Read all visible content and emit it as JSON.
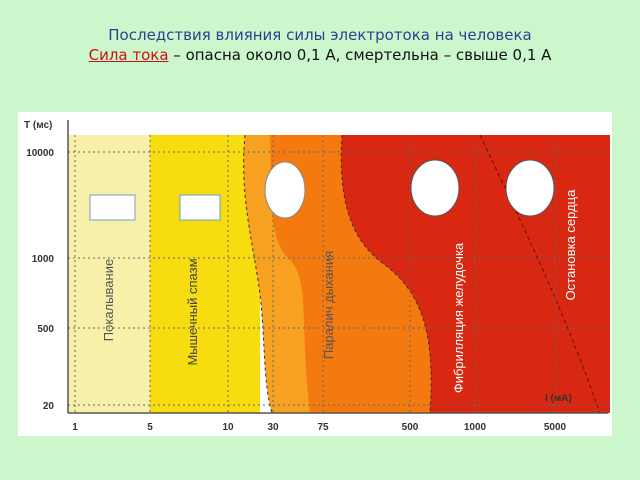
{
  "header": {
    "title": "Последствия влияния силы электротока на человека",
    "subtitle_highlight": "Сила тока",
    "subtitle_rest": " – опасна около 0,1 А, смертельна – свыше 0,1 А"
  },
  "diagram": {
    "y_axis_label": "T (мс)",
    "x_axis_label": "I (мА)",
    "y_ticks": [
      "10000",
      "1000",
      "500",
      "20"
    ],
    "x_ticks": [
      "1",
      "5",
      "10",
      "30",
      "75",
      "500",
      "1000",
      "5000"
    ],
    "zones": [
      "Покалывание",
      "Мышечный спазм",
      "Паралич дыхания",
      "Фибрилляция желудочка",
      "Остановка сердца"
    ]
  }
}
